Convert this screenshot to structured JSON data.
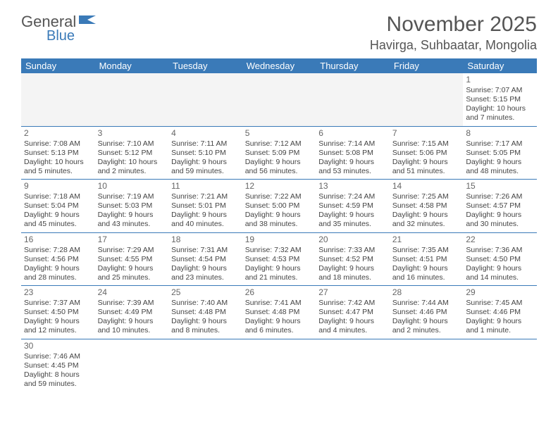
{
  "brand": {
    "name1": "General",
    "name2": "Blue"
  },
  "title": "November 2025",
  "location": "Havirga, Suhbaatar, Mongolia",
  "colors": {
    "accent": "#3a7ab8",
    "text": "#444444",
    "header_text": "#ffffff",
    "bg": "#ffffff"
  },
  "daysOfWeek": [
    "Sunday",
    "Monday",
    "Tuesday",
    "Wednesday",
    "Thursday",
    "Friday",
    "Saturday"
  ],
  "weeks": [
    [
      null,
      null,
      null,
      null,
      null,
      null,
      {
        "n": "1",
        "sr": "Sunrise: 7:07 AM",
        "ss": "Sunset: 5:15 PM",
        "dl": "Daylight: 10 hours and 7 minutes."
      }
    ],
    [
      {
        "n": "2",
        "sr": "Sunrise: 7:08 AM",
        "ss": "Sunset: 5:13 PM",
        "dl": "Daylight: 10 hours and 5 minutes."
      },
      {
        "n": "3",
        "sr": "Sunrise: 7:10 AM",
        "ss": "Sunset: 5:12 PM",
        "dl": "Daylight: 10 hours and 2 minutes."
      },
      {
        "n": "4",
        "sr": "Sunrise: 7:11 AM",
        "ss": "Sunset: 5:10 PM",
        "dl": "Daylight: 9 hours and 59 minutes."
      },
      {
        "n": "5",
        "sr": "Sunrise: 7:12 AM",
        "ss": "Sunset: 5:09 PM",
        "dl": "Daylight: 9 hours and 56 minutes."
      },
      {
        "n": "6",
        "sr": "Sunrise: 7:14 AM",
        "ss": "Sunset: 5:08 PM",
        "dl": "Daylight: 9 hours and 53 minutes."
      },
      {
        "n": "7",
        "sr": "Sunrise: 7:15 AM",
        "ss": "Sunset: 5:06 PM",
        "dl": "Daylight: 9 hours and 51 minutes."
      },
      {
        "n": "8",
        "sr": "Sunrise: 7:17 AM",
        "ss": "Sunset: 5:05 PM",
        "dl": "Daylight: 9 hours and 48 minutes."
      }
    ],
    [
      {
        "n": "9",
        "sr": "Sunrise: 7:18 AM",
        "ss": "Sunset: 5:04 PM",
        "dl": "Daylight: 9 hours and 45 minutes."
      },
      {
        "n": "10",
        "sr": "Sunrise: 7:19 AM",
        "ss": "Sunset: 5:03 PM",
        "dl": "Daylight: 9 hours and 43 minutes."
      },
      {
        "n": "11",
        "sr": "Sunrise: 7:21 AM",
        "ss": "Sunset: 5:01 PM",
        "dl": "Daylight: 9 hours and 40 minutes."
      },
      {
        "n": "12",
        "sr": "Sunrise: 7:22 AM",
        "ss": "Sunset: 5:00 PM",
        "dl": "Daylight: 9 hours and 38 minutes."
      },
      {
        "n": "13",
        "sr": "Sunrise: 7:24 AM",
        "ss": "Sunset: 4:59 PM",
        "dl": "Daylight: 9 hours and 35 minutes."
      },
      {
        "n": "14",
        "sr": "Sunrise: 7:25 AM",
        "ss": "Sunset: 4:58 PM",
        "dl": "Daylight: 9 hours and 32 minutes."
      },
      {
        "n": "15",
        "sr": "Sunrise: 7:26 AM",
        "ss": "Sunset: 4:57 PM",
        "dl": "Daylight: 9 hours and 30 minutes."
      }
    ],
    [
      {
        "n": "16",
        "sr": "Sunrise: 7:28 AM",
        "ss": "Sunset: 4:56 PM",
        "dl": "Daylight: 9 hours and 28 minutes."
      },
      {
        "n": "17",
        "sr": "Sunrise: 7:29 AM",
        "ss": "Sunset: 4:55 PM",
        "dl": "Daylight: 9 hours and 25 minutes."
      },
      {
        "n": "18",
        "sr": "Sunrise: 7:31 AM",
        "ss": "Sunset: 4:54 PM",
        "dl": "Daylight: 9 hours and 23 minutes."
      },
      {
        "n": "19",
        "sr": "Sunrise: 7:32 AM",
        "ss": "Sunset: 4:53 PM",
        "dl": "Daylight: 9 hours and 21 minutes."
      },
      {
        "n": "20",
        "sr": "Sunrise: 7:33 AM",
        "ss": "Sunset: 4:52 PM",
        "dl": "Daylight: 9 hours and 18 minutes."
      },
      {
        "n": "21",
        "sr": "Sunrise: 7:35 AM",
        "ss": "Sunset: 4:51 PM",
        "dl": "Daylight: 9 hours and 16 minutes."
      },
      {
        "n": "22",
        "sr": "Sunrise: 7:36 AM",
        "ss": "Sunset: 4:50 PM",
        "dl": "Daylight: 9 hours and 14 minutes."
      }
    ],
    [
      {
        "n": "23",
        "sr": "Sunrise: 7:37 AM",
        "ss": "Sunset: 4:50 PM",
        "dl": "Daylight: 9 hours and 12 minutes."
      },
      {
        "n": "24",
        "sr": "Sunrise: 7:39 AM",
        "ss": "Sunset: 4:49 PM",
        "dl": "Daylight: 9 hours and 10 minutes."
      },
      {
        "n": "25",
        "sr": "Sunrise: 7:40 AM",
        "ss": "Sunset: 4:48 PM",
        "dl": "Daylight: 9 hours and 8 minutes."
      },
      {
        "n": "26",
        "sr": "Sunrise: 7:41 AM",
        "ss": "Sunset: 4:48 PM",
        "dl": "Daylight: 9 hours and 6 minutes."
      },
      {
        "n": "27",
        "sr": "Sunrise: 7:42 AM",
        "ss": "Sunset: 4:47 PM",
        "dl": "Daylight: 9 hours and 4 minutes."
      },
      {
        "n": "28",
        "sr": "Sunrise: 7:44 AM",
        "ss": "Sunset: 4:46 PM",
        "dl": "Daylight: 9 hours and 2 minutes."
      },
      {
        "n": "29",
        "sr": "Sunrise: 7:45 AM",
        "ss": "Sunset: 4:46 PM",
        "dl": "Daylight: 9 hours and 1 minute."
      }
    ],
    [
      {
        "n": "30",
        "sr": "Sunrise: 7:46 AM",
        "ss": "Sunset: 4:45 PM",
        "dl": "Daylight: 8 hours and 59 minutes."
      },
      null,
      null,
      null,
      null,
      null,
      null
    ]
  ]
}
